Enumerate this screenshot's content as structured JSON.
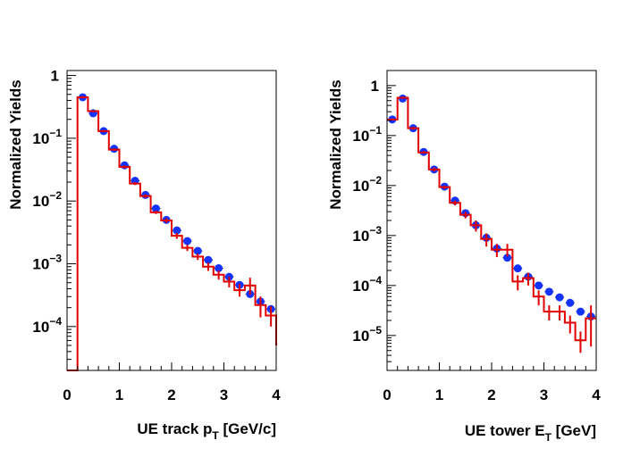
{
  "chart_data": [
    {
      "type": "scatter",
      "xlabel_main": "UE track p",
      "xlabel_sub": "T",
      "xlabel_tail": " [GeV/c]",
      "ylabel": "Normalized Yields",
      "xlim": [
        0,
        4
      ],
      "ylim": [
        2e-05,
        1.2
      ],
      "log_y": true,
      "x_ticks": [
        "0",
        "1",
        "2",
        "3",
        "4"
      ],
      "x_tick_values": [
        0,
        1,
        2,
        3,
        4
      ],
      "y_ticks": [
        {
          "value": 1,
          "base": "1",
          "exp": ""
        },
        {
          "value": 0.1,
          "base": "10",
          "exp": "−1"
        },
        {
          "value": 0.01,
          "base": "10",
          "exp": "−2"
        },
        {
          "value": 0.001,
          "base": "10",
          "exp": "−3"
        },
        {
          "value": 0.0001,
          "base": "10",
          "exp": "−4"
        }
      ],
      "grid": false,
      "series": [
        {
          "style": "blue-markers",
          "x": [
            0.3,
            0.5,
            0.7,
            0.9,
            1.1,
            1.3,
            1.5,
            1.7,
            1.9,
            2.1,
            2.3,
            2.5,
            2.7,
            2.9,
            3.1,
            3.3,
            3.5,
            3.7,
            3.9
          ],
          "y": [
            0.45,
            0.25,
            0.13,
            0.068,
            0.037,
            0.021,
            0.0125,
            0.0076,
            0.005,
            0.0034,
            0.0023,
            0.0016,
            0.00115,
            0.00085,
            0.00062,
            0.00046,
            0.00033,
            0.00025,
            0.00019
          ]
        },
        {
          "style": "red-histogram",
          "edges": [
            0.2,
            0.4,
            0.6,
            0.8,
            1.0,
            1.2,
            1.4,
            1.6,
            1.8,
            2.0,
            2.2,
            2.4,
            2.6,
            2.8,
            3.0,
            3.2,
            3.4,
            3.6,
            3.8,
            4.0
          ],
          "values": [
            0.45,
            0.27,
            0.13,
            0.066,
            0.035,
            0.019,
            0.012,
            0.0066,
            0.0049,
            0.0028,
            0.0018,
            0.0013,
            0.0009,
            0.00067,
            0.00052,
            0.00038,
            0.00045,
            0.00022,
            0.00015
          ],
          "err_lo": [
            0.43,
            0.26,
            0.125,
            0.063,
            0.033,
            0.018,
            0.0112,
            0.0062,
            0.0045,
            0.0025,
            0.0016,
            0.00115,
            0.00077,
            0.00056,
            0.00042,
            0.0003,
            0.00032,
            0.00014,
            0.0001
          ],
          "err_hi": [
            0.47,
            0.28,
            0.135,
            0.069,
            0.037,
            0.02,
            0.0128,
            0.007,
            0.0053,
            0.0031,
            0.002,
            0.00145,
            0.00104,
            0.00078,
            0.00062,
            0.00048,
            0.0006,
            0.0003,
            0.00021
          ],
          "first_bin_floor": 2e-05,
          "tail_value": 5e-05
        }
      ]
    },
    {
      "type": "scatter",
      "xlabel_main": "UE tower E",
      "xlabel_sub": "T",
      "xlabel_tail": " [GeV]",
      "ylabel": "Normalized Yields",
      "xlim": [
        0,
        4
      ],
      "ylim": [
        2e-06,
        2
      ],
      "log_y": true,
      "x_ticks": [
        "0",
        "1",
        "2",
        "3",
        "4"
      ],
      "x_tick_values": [
        0,
        1,
        2,
        3,
        4
      ],
      "y_ticks": [
        {
          "value": 1,
          "base": "1",
          "exp": ""
        },
        {
          "value": 0.1,
          "base": "10",
          "exp": "−1"
        },
        {
          "value": 0.01,
          "base": "10",
          "exp": "−2"
        },
        {
          "value": 0.001,
          "base": "10",
          "exp": "−3"
        },
        {
          "value": 0.0001,
          "base": "10",
          "exp": "−4"
        },
        {
          "value": 1e-05,
          "base": "10",
          "exp": "−5"
        }
      ],
      "grid": false,
      "series": [
        {
          "style": "blue-markers",
          "x": [
            0.1,
            0.3,
            0.5,
            0.7,
            0.9,
            1.1,
            1.3,
            1.5,
            1.7,
            1.9,
            2.1,
            2.3,
            2.5,
            2.7,
            2.9,
            3.1,
            3.3,
            3.5,
            3.7,
            3.9
          ],
          "y": [
            0.21,
            0.55,
            0.14,
            0.047,
            0.021,
            0.0095,
            0.005,
            0.0028,
            0.0016,
            0.0009,
            0.00055,
            0.00036,
            0.00022,
            0.00015,
            0.0001,
            7.5e-05,
            5.8e-05,
            4.5e-05,
            3e-05,
            2.4e-05
          ]
        },
        {
          "style": "red-histogram",
          "edges": [
            0.0,
            0.2,
            0.4,
            0.6,
            0.8,
            1.0,
            1.2,
            1.4,
            1.6,
            1.8,
            2.0,
            2.2,
            2.4,
            2.6,
            2.8,
            3.0,
            3.2,
            3.4,
            3.6,
            3.8,
            4.0
          ],
          "values": [
            0.21,
            0.57,
            0.14,
            0.046,
            0.021,
            0.0093,
            0.0045,
            0.0026,
            0.0016,
            0.00085,
            0.00052,
            0.00052,
            0.00012,
            0.00014,
            6e-05,
            3e-05,
            3e-05,
            1.8e-05,
            8e-06,
            2.2e-05
          ],
          "err_lo": [
            0.2,
            0.54,
            0.13,
            0.043,
            0.019,
            0.0085,
            0.004,
            0.0022,
            0.0012,
            0.0006,
            0.00037,
            0.00038,
            8e-05,
            0.0001,
            4e-05,
            2e-05,
            2e-05,
            1.1e-05,
            4.5e-06,
            6e-06
          ],
          "err_hi": [
            0.22,
            0.6,
            0.15,
            0.049,
            0.023,
            0.01,
            0.005,
            0.003,
            0.002,
            0.0011,
            0.00068,
            0.00068,
            0.00016,
            0.00018,
            8e-05,
            4e-05,
            4e-05,
            2.5e-05,
            1.2e-05,
            4e-05
          ]
        }
      ]
    }
  ]
}
